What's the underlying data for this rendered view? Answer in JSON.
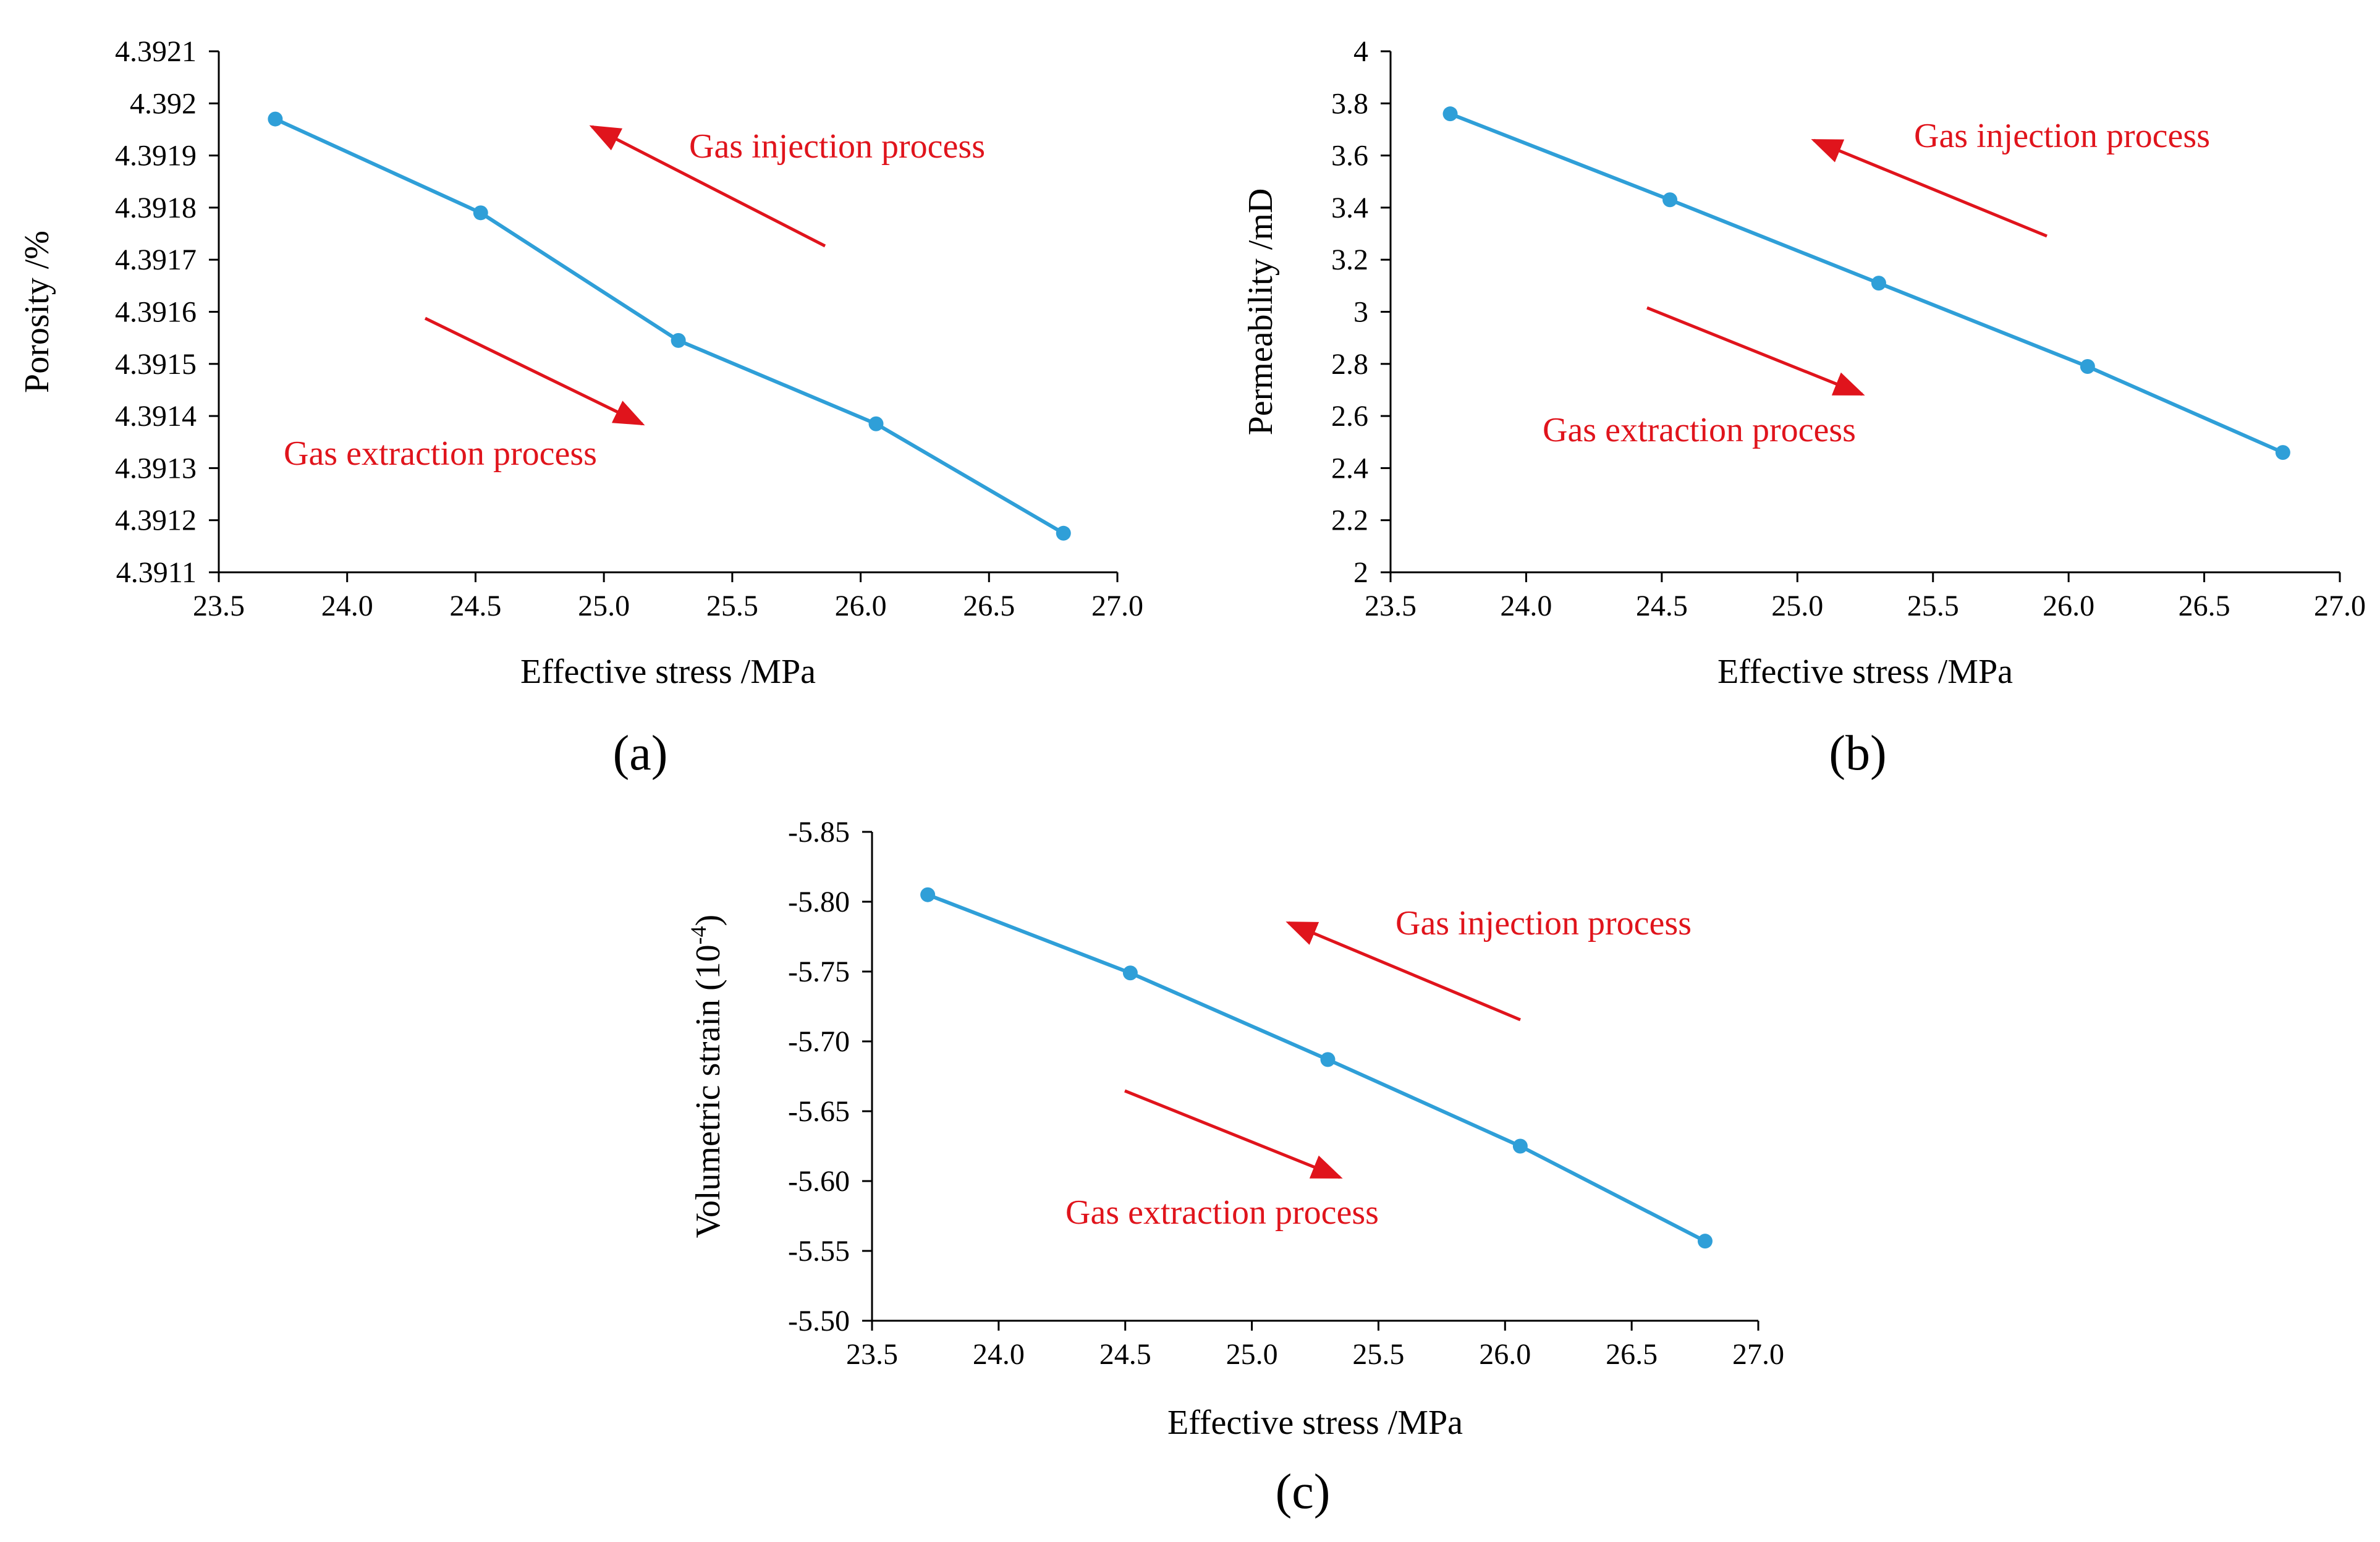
{
  "colors": {
    "series": "#2f9fd8",
    "arrow": "#e0141c",
    "axis": "#000000",
    "text": "#000000"
  },
  "chart_data": [
    {
      "id": "a",
      "type": "line",
      "panel_label": "(a)",
      "title": "",
      "xlabel": "Effective stress /MPa",
      "ylabel": "Porosity /%",
      "x": [
        23.72,
        24.52,
        25.29,
        26.06,
        26.79
      ],
      "values": [
        4.39197,
        4.39179,
        4.391545,
        4.391385,
        4.391175
      ],
      "xlim": [
        23.5,
        27.0
      ],
      "ylim": [
        4.3911,
        4.3921
      ],
      "xticks": [
        23.5,
        24.0,
        24.5,
        25.0,
        25.5,
        26.0,
        26.5,
        27.0
      ],
      "xtick_labels": [
        "23.5",
        "24.0",
        "24.5",
        "25.0",
        "25.5",
        "26.0",
        "26.5",
        "27.0"
      ],
      "yticks": [
        4.3911,
        4.3912,
        4.3913,
        4.3914,
        4.3915,
        4.3916,
        4.3917,
        4.3918,
        4.3919,
        4.392,
        4.3921
      ],
      "ytick_labels": [
        "4.3911",
        "4.3912",
        "4.3913",
        "4.3914",
        "4.3915",
        "4.3916",
        "4.3917",
        "4.3918",
        "4.3919",
        "4.392",
        "4.3921"
      ],
      "grid": false,
      "annotations": [
        {
          "name": "injection",
          "text": "Gas injection process",
          "direction": "up-left"
        },
        {
          "name": "extraction",
          "text": "Gas extraction process",
          "direction": "down-right"
        }
      ]
    },
    {
      "id": "b",
      "type": "line",
      "panel_label": "(b)",
      "title": "",
      "xlabel": "Effective stress /MPa",
      "ylabel": "Permeability /mD",
      "x": [
        23.72,
        24.53,
        25.3,
        26.07,
        26.79
      ],
      "values": [
        3.76,
        3.43,
        3.11,
        2.79,
        2.46
      ],
      "xlim": [
        23.5,
        27.0
      ],
      "ylim": [
        2,
        4
      ],
      "xticks": [
        23.5,
        24.0,
        24.5,
        25.0,
        25.5,
        26.0,
        26.5,
        27.0
      ],
      "xtick_labels": [
        "23.5",
        "24.0",
        "24.5",
        "25.0",
        "25.5",
        "26.0",
        "26.5",
        "27.0"
      ],
      "yticks": [
        2,
        2.2,
        2.4,
        2.6,
        2.8,
        3,
        3.2,
        3.4,
        3.6,
        3.8,
        4
      ],
      "ytick_labels": [
        "2",
        "2.2",
        "2.4",
        "2.6",
        "2.8",
        "3",
        "3.2",
        "3.4",
        "3.6",
        "3.8",
        "4"
      ],
      "grid": false,
      "annotations": [
        {
          "name": "injection",
          "text": "Gas injection process",
          "direction": "up-left"
        },
        {
          "name": "extraction",
          "text": "Gas extraction process",
          "direction": "down-right"
        }
      ]
    },
    {
      "id": "c",
      "type": "line",
      "panel_label": "(c)",
      "title": "",
      "xlabel": "Effective stress /MPa",
      "ylabel": "Volumetric strain (10",
      "ylabel_superscript": "-4",
      "ylabel_suffix": ")",
      "x": [
        23.72,
        24.52,
        25.3,
        26.06,
        26.79
      ],
      "values": [
        -5.805,
        -5.749,
        -5.687,
        -5.625,
        -5.557
      ],
      "xlim": [
        23.5,
        27.0
      ],
      "ylim": [
        -5.5,
        -5.85
      ],
      "xticks": [
        23.5,
        24.0,
        24.5,
        25.0,
        25.5,
        26.0,
        26.5,
        27.0
      ],
      "xtick_labels": [
        "23.5",
        "24.0",
        "24.5",
        "25.0",
        "25.5",
        "26.0",
        "26.5",
        "27.0"
      ],
      "yticks": [
        -5.85,
        -5.8,
        -5.75,
        -5.7,
        -5.65,
        -5.6,
        -5.55,
        -5.5
      ],
      "ytick_labels": [
        "-5.85",
        "-5.80",
        "-5.75",
        "-5.70",
        "-5.65",
        "-5.60",
        "-5.55",
        "-5.50"
      ],
      "grid": false,
      "annotations": [
        {
          "name": "injection",
          "text": "Gas injection process",
          "direction": "up-left"
        },
        {
          "name": "extraction",
          "text": "Gas extraction process",
          "direction": "down-right"
        }
      ]
    }
  ]
}
